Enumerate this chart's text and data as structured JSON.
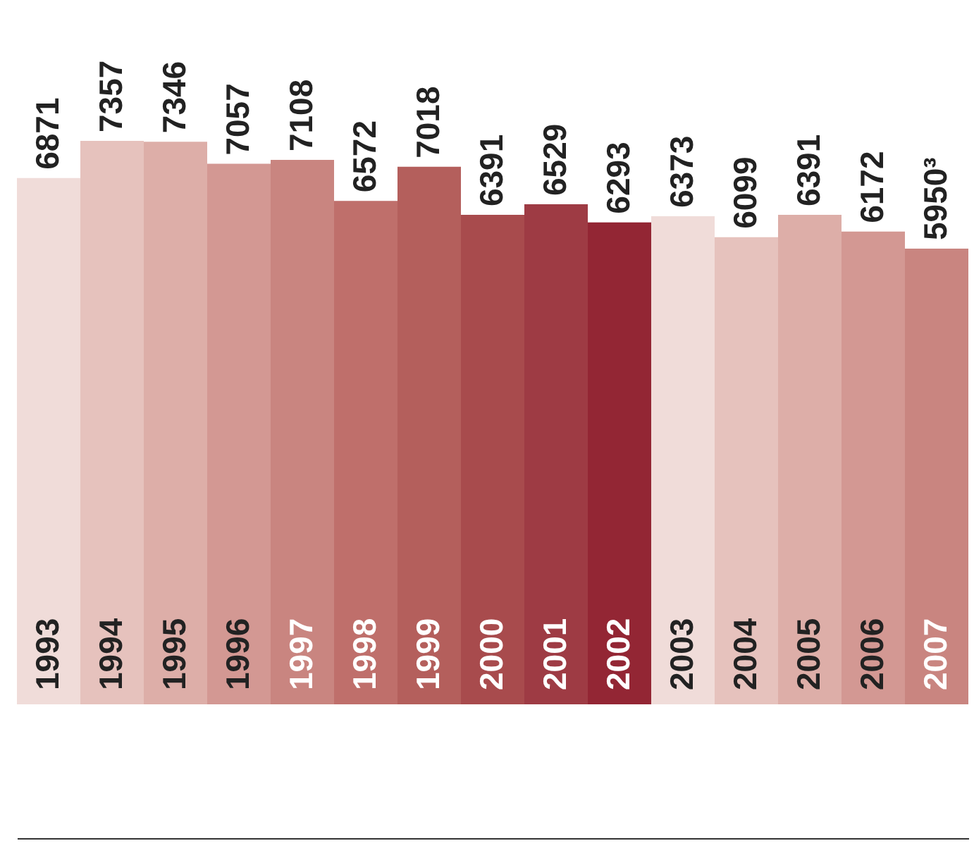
{
  "chart_data": {
    "type": "bar",
    "categories": [
      "1993",
      "1994",
      "1995",
      "1996",
      "1997",
      "1998",
      "1999",
      "2000",
      "2001",
      "2002",
      "2003",
      "2004",
      "2005",
      "2006",
      "2007"
    ],
    "values": [
      6871,
      7357,
      7346,
      7057,
      7108,
      6572,
      7018,
      6391,
      6529,
      6293,
      6373,
      6099,
      6391,
      6172,
      5950
    ],
    "value_labels": [
      "6871",
      "7357",
      "7346",
      "7057",
      "7108",
      "6572",
      "7018",
      "6391",
      "6529",
      "6293",
      "6373",
      "6099",
      "6391",
      "6172",
      "5950³"
    ],
    "colors": [
      "#f0dcd9",
      "#e6c2bd",
      "#ddaea8",
      "#d39893",
      "#c98580",
      "#bf6f6b",
      "#b45f5c",
      "#a84b4d",
      "#9e3b44",
      "#932634",
      "#f0dcd9",
      "#e6c2bd",
      "#ddaea8",
      "#d39893",
      "#c98580"
    ],
    "tick_labels": "x",
    "grid": false
  }
}
